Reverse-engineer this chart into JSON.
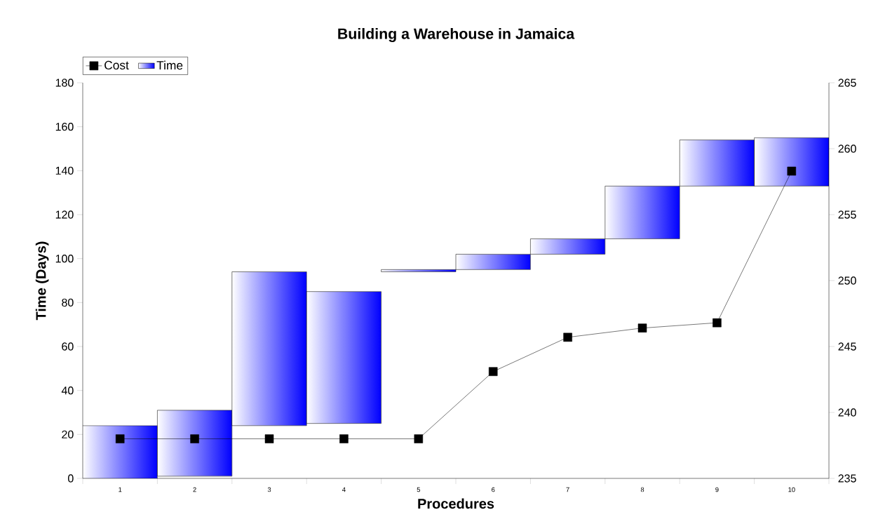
{
  "chart_data": {
    "type": "bar",
    "title": "Building a Warehouse in Jamaica",
    "xlabel": "Procedures",
    "ylabel": "Time (Days)",
    "categories": [
      "1",
      "2",
      "3",
      "4",
      "5",
      "6",
      "7",
      "8",
      "9",
      "10"
    ],
    "series": [
      {
        "name": "Cost",
        "type": "line",
        "axis": "y2",
        "color": "#000000",
        "values": [
          238,
          238,
          238,
          238,
          238,
          243.1,
          245.7,
          246.4,
          246.8,
          258.3
        ]
      },
      {
        "name": "Time",
        "color": "#0000ff",
        "base": [
          0,
          1,
          24,
          25,
          94,
          95,
          102,
          109,
          133,
          133
        ],
        "values": [
          24,
          30,
          70,
          60,
          1,
          7,
          7,
          24,
          21,
          22
        ]
      }
    ],
    "ylim": [
      0,
      180
    ],
    "yticks": [
      0,
      20,
      40,
      60,
      80,
      100,
      120,
      140,
      160,
      180
    ],
    "y2lim": [
      235,
      265
    ],
    "y2ticks": [
      235,
      240,
      245,
      250,
      255,
      260,
      265
    ],
    "legend": "top left",
    "marker": "square",
    "line_style": "solid"
  }
}
